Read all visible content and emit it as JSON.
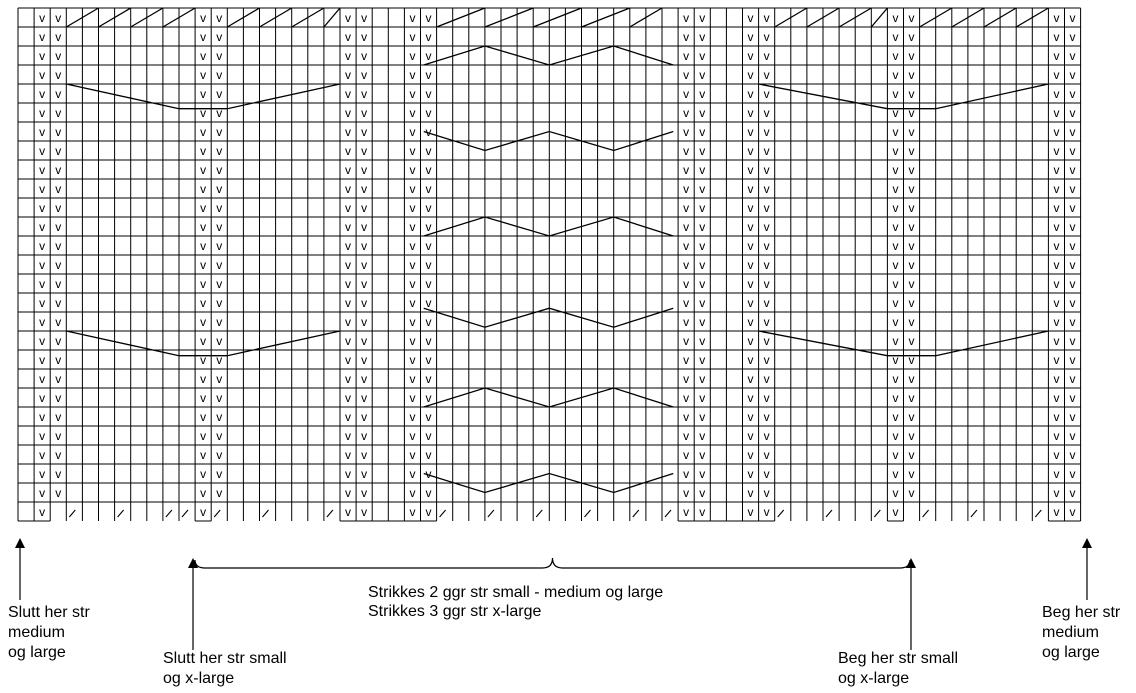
{
  "chart": {
    "columns": 66,
    "rows": 27,
    "stitch_symbol": "v",
    "v_column_groups": [
      [
        1,
        2
      ],
      [
        11,
        12
      ],
      [
        20,
        21
      ],
      [
        24,
        25
      ],
      [
        41,
        42
      ],
      [
        45,
        46
      ],
      [
        54,
        55
      ],
      [
        64,
        65
      ]
    ],
    "bottom_row_v_columns": [
      1,
      11,
      20,
      21,
      24,
      25,
      41,
      42,
      45,
      46,
      54,
      64,
      65
    ],
    "bottom_row_open_cells": [
      2,
      3,
      4,
      5,
      6,
      7,
      8,
      9,
      10,
      12,
      13,
      14,
      15,
      16,
      17,
      18,
      19,
      26,
      27,
      28,
      29,
      30,
      31,
      32,
      33,
      34,
      35,
      36,
      37,
      38,
      39,
      40,
      47,
      48,
      49,
      50,
      51,
      52,
      53,
      55,
      56,
      57,
      58,
      59,
      60,
      61,
      62,
      63
    ],
    "bottom_row_slash_columns": [
      3,
      6,
      9,
      10,
      12,
      15,
      19,
      26,
      29,
      32,
      35,
      38,
      40,
      47,
      50,
      53,
      56,
      59,
      63
    ]
  },
  "labels": {
    "repeat_line1": "Strikkes 2 ggr str small - medium og large",
    "repeat_line2": "Strikkes 3 ggr str x-large",
    "slutt_medium": [
      "Slutt her str",
      "medium",
      "og large"
    ],
    "slutt_small": [
      "Slutt her str small",
      "og x-large"
    ],
    "beg_small": [
      "Beg her str small",
      "og x-large"
    ],
    "beg_medium": [
      "Beg her str",
      "medium",
      "og large"
    ]
  }
}
